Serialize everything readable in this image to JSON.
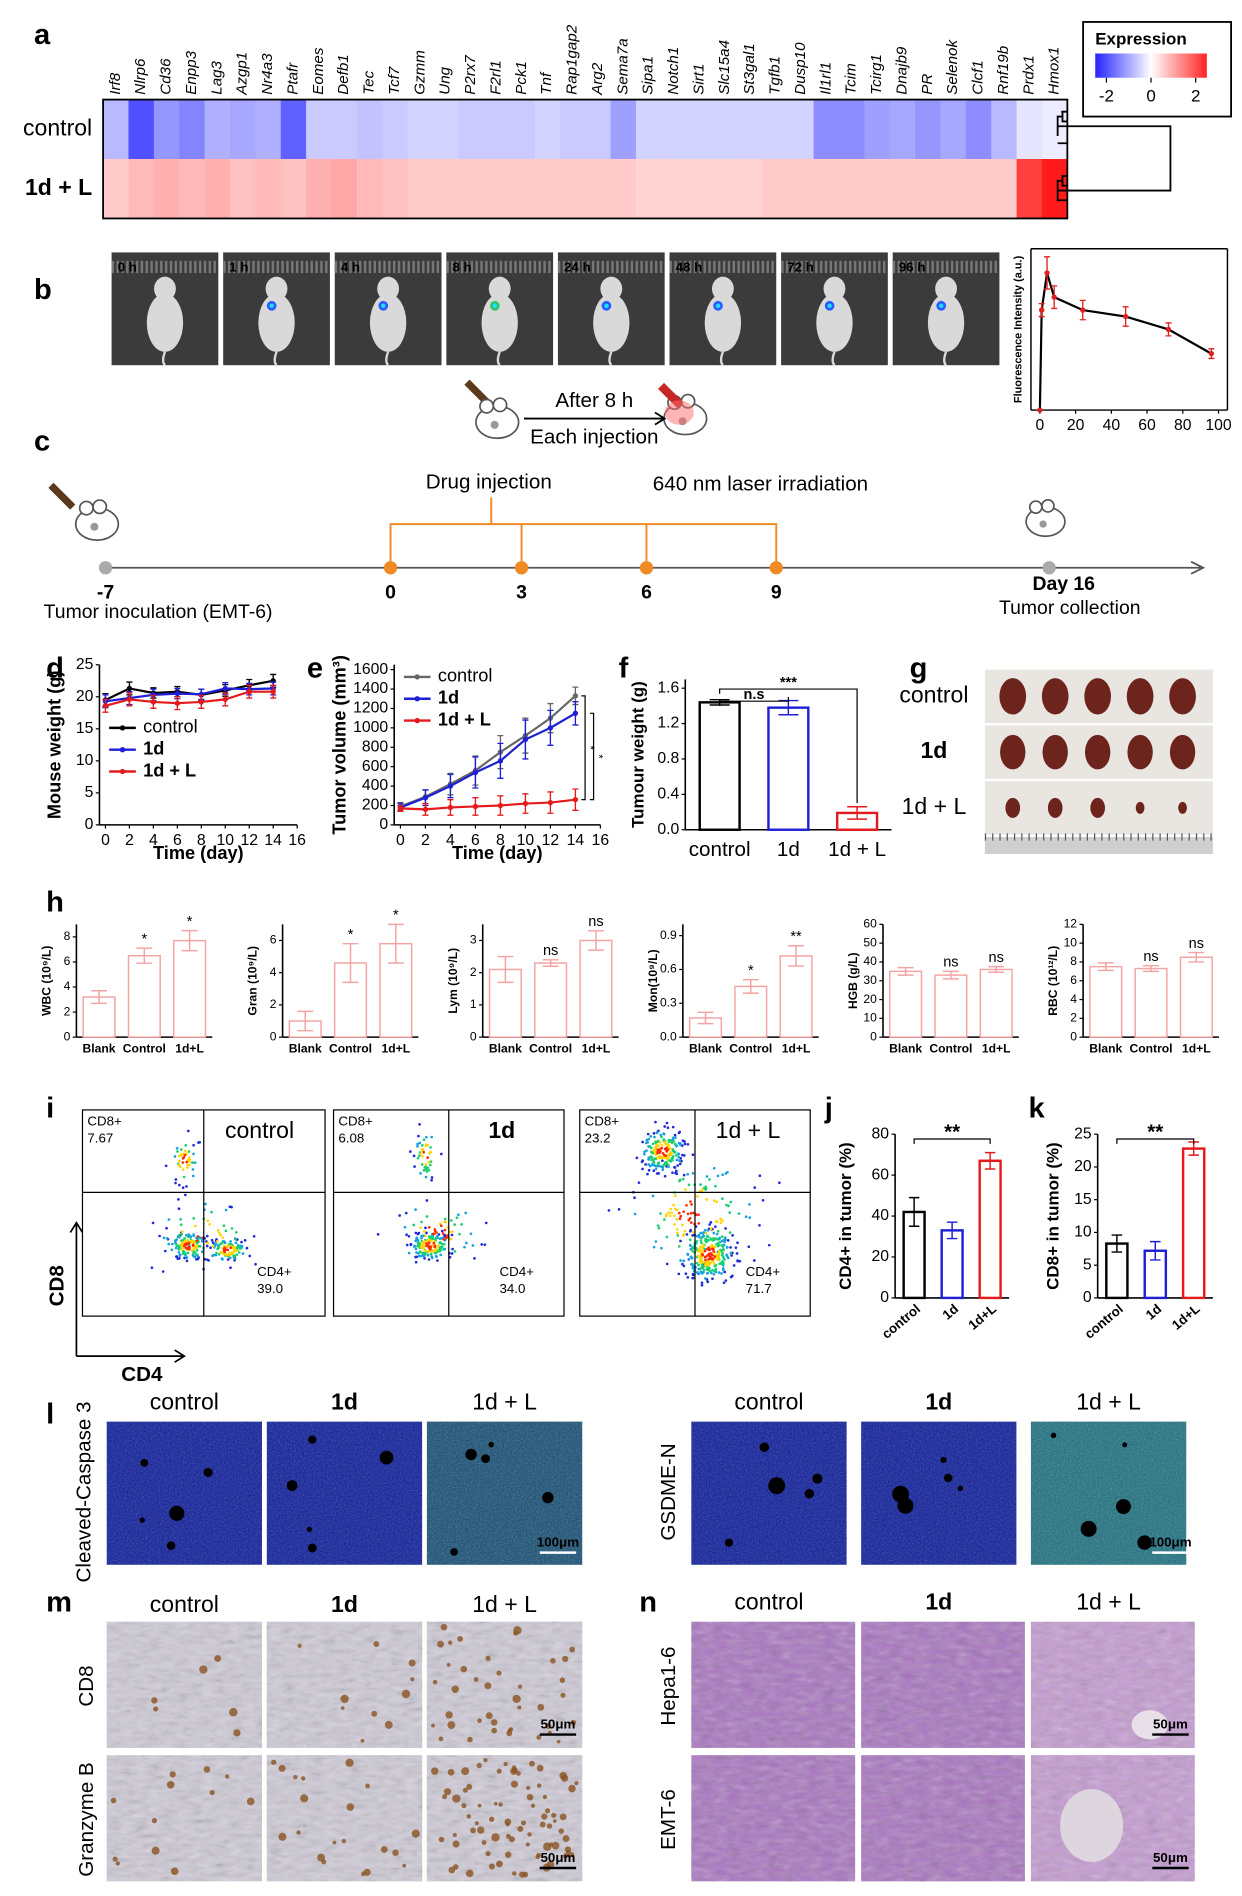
{
  "panel_labels": [
    "a",
    "b",
    "c",
    "d",
    "e",
    "f",
    "g",
    "h",
    "i",
    "j",
    "k",
    "l",
    "m",
    "n"
  ],
  "chart_data": [
    {
      "type": "heatmap",
      "columns": [
        "Irf8",
        "Nlrp6",
        "Cd36",
        "Enpp3",
        "Lag3",
        "Azgp1",
        "Nr4a3",
        "Ptafr",
        "Eomes",
        "Defb1",
        "Tec",
        "Tcf7",
        "Gzmm",
        "Ung",
        "P2rx7",
        "F2rl1",
        "Pck1",
        "Tnf",
        "Rap1gap2",
        "Arg2",
        "Sema7a",
        "Sipa1",
        "Notch1",
        "Sirt1",
        "Slc15a4",
        "St3gal1",
        "Tgfb1",
        "Dusp10",
        "Il1rl1",
        "Tcim",
        "Tcirg1",
        "Dnajb9",
        "PR",
        "Selenok",
        "Clcf1",
        "Rnf19b",
        "Prdx1",
        "Hmox1"
      ],
      "rows": [
        "control",
        "1d + L"
      ],
      "values": [
        [
          -0.8,
          -2.0,
          -1.2,
          -1.4,
          -0.9,
          -1.0,
          -0.9,
          -1.8,
          -0.6,
          -0.6,
          -0.7,
          -0.6,
          -0.5,
          -0.5,
          -0.6,
          -0.6,
          -0.6,
          -0.5,
          -0.6,
          -0.6,
          -1.1,
          -0.5,
          -0.5,
          -0.5,
          -0.5,
          -0.5,
          -0.5,
          -0.5,
          -1.3,
          -1.3,
          -1.1,
          -1.0,
          -1.2,
          -1.0,
          -1.3,
          -0.8,
          -0.3,
          -0.2
        ],
        [
          0.6,
          0.8,
          0.9,
          0.8,
          0.9,
          0.7,
          0.8,
          0.7,
          0.9,
          1.0,
          0.8,
          0.7,
          0.6,
          0.6,
          0.6,
          0.6,
          0.6,
          0.6,
          0.6,
          0.6,
          0.6,
          0.5,
          0.5,
          0.5,
          0.5,
          0.5,
          0.6,
          0.6,
          0.6,
          0.6,
          0.6,
          0.6,
          0.6,
          0.6,
          0.6,
          0.6,
          2.2,
          2.6
        ]
      ],
      "legend_title": "Expression",
      "colorbar_lim": [
        -2.5,
        2.5
      ],
      "colorbar_ticks": [
        -2,
        0,
        2
      ],
      "colors": [
        "#2424ff",
        "#ffffff",
        "#ff2424"
      ]
    },
    {
      "type": "line",
      "ylabel": "Fluorescence Intensity (a.u.)",
      "x": [
        0,
        1,
        4,
        8,
        24,
        48,
        72,
        96
      ],
      "series": [
        {
          "color": "#000000",
          "values": [
            0,
            0.62,
            0.85,
            0.7,
            0.62,
            0.58,
            0.5,
            0.35
          ],
          "errors": [
            0,
            0.04,
            0.1,
            0.07,
            0.06,
            0.06,
            0.04,
            0.03
          ]
        }
      ],
      "xlim": [
        -5,
        105
      ],
      "xticks": [
        0,
        20,
        40,
        60,
        80,
        100
      ],
      "ylim": [
        0,
        1
      ],
      "frame": true,
      "error_color": "#e02020"
    },
    {
      "type": "line",
      "xlabel": "Time (day)",
      "ylabel": "Mouse weight (g)",
      "x": [
        0,
        2,
        4,
        6,
        8,
        10,
        12,
        14
      ],
      "series": [
        {
          "name": "control",
          "color": "#000000",
          "values": [
            19.5,
            21.3,
            20.6,
            20.8,
            20.3,
            21,
            21.8,
            22.5
          ],
          "errors": [
            1,
            1,
            0.8,
            0.8,
            0.9,
            0.9,
            0.9,
            1
          ]
        },
        {
          "name": "1d",
          "color": "#1f1fd6",
          "values": [
            19.3,
            19.8,
            20.3,
            20.5,
            20.4,
            21.3,
            21.2,
            21.3
          ],
          "errors": [
            1,
            1,
            0.9,
            0.8,
            0.8,
            0.9,
            0.9,
            1
          ]
        },
        {
          "name": "1d + L",
          "color": "#e41a1c",
          "values": [
            18.6,
            19.6,
            19.2,
            19,
            19.2,
            19.6,
            20.8,
            20.8
          ],
          "errors": [
            1,
            1,
            1,
            1,
            1,
            1,
            1,
            1
          ]
        }
      ],
      "xlim": [
        -0.5,
        16
      ],
      "xticks": [
        0,
        2,
        4,
        6,
        8,
        10,
        12,
        14,
        16
      ],
      "ylim": [
        0,
        25
      ],
      "yticks": [
        0,
        5,
        10,
        15,
        20,
        25
      ],
      "legend": "center left"
    },
    {
      "type": "line",
      "xlabel": "Time (day)",
      "ylabel": "Tumor volume (mm³)",
      "x": [
        0,
        2,
        4,
        6,
        8,
        10,
        12,
        14
      ],
      "series": [
        {
          "name": "control",
          "color": "#666666",
          "values": [
            190,
            290,
            420,
            560,
            750,
            920,
            1100,
            1330
          ],
          "errors": [
            40,
            70,
            110,
            150,
            170,
            180,
            150,
            90
          ]
        },
        {
          "name": "1d",
          "color": "#1f1fd6",
          "values": [
            180,
            280,
            400,
            540,
            660,
            880,
            1000,
            1150
          ],
          "errors": [
            40,
            80,
            120,
            160,
            180,
            200,
            180,
            120
          ]
        },
        {
          "name": "1d + L",
          "color": "#e41a1c",
          "values": [
            170,
            160,
            180,
            190,
            200,
            220,
            230,
            260
          ],
          "errors": [
            30,
            60,
            80,
            90,
            100,
            100,
            110,
            110
          ]
        }
      ],
      "xlim": [
        -0.5,
        16
      ],
      "xticks": [
        0,
        2,
        4,
        6,
        8,
        10,
        12,
        14,
        16
      ],
      "ylim": [
        0,
        1650
      ],
      "yticks": [
        0,
        200,
        400,
        600,
        800,
        1000,
        1200,
        1400,
        1600
      ],
      "legend": "upper left",
      "brackets": [
        "*",
        "*"
      ]
    },
    {
      "type": "bar",
      "ylabel": "Tumour weight (g)",
      "categories": [
        "control",
        "1d",
        "1d + L"
      ],
      "values": [
        1.44,
        1.38,
        0.19
      ],
      "errors": [
        0.03,
        0.08,
        0.07
      ],
      "colors": [
        "#000000",
        "#1f1fd6",
        "#e41a1c"
      ],
      "ylim": [
        0,
        1.7
      ],
      "yticks": [
        {
          "value": 0,
          "label": "0.0"
        },
        0.4,
        0.8,
        1.2,
        1.6
      ],
      "brackets": [
        "n.s",
        "***"
      ]
    },
    {
      "type": "bar",
      "ylabel": "WBC (10⁹/L)",
      "categories": [
        "Blank",
        "Control",
        "1d+L"
      ],
      "values": [
        3.2,
        6.5,
        7.7
      ],
      "errors": [
        0.5,
        0.6,
        0.8
      ],
      "color": "#f4a3a3",
      "ylim": [
        0,
        9
      ],
      "yticks": [
        0,
        2,
        4,
        6,
        8
      ],
      "annotations": [
        "*",
        "*"
      ]
    },
    {
      "type": "bar",
      "ylabel": "Gran (10⁹/L)",
      "categories": [
        "Blank",
        "Control",
        "1d+L"
      ],
      "values": [
        1.0,
        4.6,
        5.8
      ],
      "errors": [
        0.6,
        1.2,
        1.2
      ],
      "color": "#f4a3a3",
      "ylim": [
        0,
        7
      ],
      "yticks": [
        0,
        2,
        4,
        6
      ],
      "annotations": [
        "*",
        "*"
      ]
    },
    {
      "type": "bar",
      "ylabel": "Lym (10⁹/L)",
      "categories": [
        "Blank",
        "Control",
        "1d+L"
      ],
      "values": [
        2.1,
        2.3,
        3.0
      ],
      "errors": [
        0.4,
        0.1,
        0.3
      ],
      "color": "#f4a3a3",
      "ylim": [
        0,
        3.5
      ],
      "yticks": [
        0,
        1,
        2,
        3
      ],
      "annotations": [
        "ns",
        "ns"
      ]
    },
    {
      "type": "bar",
      "ylabel": "Mon(10⁹/L)",
      "categories": [
        "Blank",
        "Control",
        "1d+L"
      ],
      "values": [
        0.17,
        0.45,
        0.72
      ],
      "errors": [
        0.05,
        0.06,
        0.09
      ],
      "color": "#f4a3a3",
      "ylim": [
        0,
        1
      ],
      "yticks": [
        {
          "value": 0,
          "label": "0.0"
        },
        0.3,
        0.6,
        0.9
      ],
      "annotations": [
        "*",
        "**"
      ]
    },
    {
      "type": "bar",
      "ylabel": "HGB (g/L)",
      "categories": [
        "Blank",
        "Control",
        "1d+L"
      ],
      "values": [
        35,
        33,
        36
      ],
      "errors": [
        2,
        2,
        1.5
      ],
      "color": "#f4a3a3",
      "ylim": [
        0,
        60
      ],
      "yticks": [
        0,
        10,
        20,
        30,
        40,
        50,
        60
      ],
      "annotations": [
        "ns",
        "ns"
      ]
    },
    {
      "type": "bar",
      "ylabel": "RBC (10¹²/L)",
      "categories": [
        "Blank",
        "Control",
        "1d+L"
      ],
      "values": [
        7.5,
        7.3,
        8.5
      ],
      "errors": [
        0.4,
        0.3,
        0.5
      ],
      "color": "#f4a3a3",
      "ylim": [
        0,
        12
      ],
      "yticks": [
        0,
        2,
        4,
        6,
        8,
        10,
        12
      ],
      "annotations": [
        "ns",
        "ns"
      ]
    },
    {
      "type": "bar",
      "ylabel": "CD4+ in tumor (%)",
      "categories": [
        "control",
        "1d",
        "1d+L"
      ],
      "values": [
        42,
        33,
        67
      ],
      "errors": [
        7,
        4,
        4
      ],
      "colors": [
        "#000000",
        "#1f1fd6",
        "#e41a1c"
      ],
      "ylim": [
        0,
        80
      ],
      "yticks": [
        0,
        20,
        40,
        60,
        80
      ],
      "brackets": [
        "**"
      ],
      "rotate_labels": true
    },
    {
      "type": "bar",
      "ylabel": "CD8+ in tumor (%)",
      "categories": [
        "control",
        "1d",
        "1d+L"
      ],
      "values": [
        8.3,
        7.2,
        22.8
      ],
      "errors": [
        1.3,
        1.4,
        1.0
      ],
      "colors": [
        "#000000",
        "#1f1fd6",
        "#e41a1c"
      ],
      "ylim": [
        0,
        25
      ],
      "yticks": [
        0,
        5,
        10,
        15,
        20,
        25
      ],
      "brackets": [
        "**"
      ],
      "rotate_labels": true
    }
  ],
  "imaging_timepoints": [
    "0 h",
    "1 h",
    "4 h",
    "8 h",
    "24 h",
    "48 h",
    "72 h",
    "96 h"
  ],
  "schedule": {
    "after": "After 8 h",
    "each": "Each injection",
    "drug": "Drug injection",
    "laser": "640 nm laser irradiation",
    "days": [
      "-7",
      "0",
      "3",
      "6",
      "9"
    ],
    "end_day": "Day 16",
    "start_label": "Tumor inoculation (EMT-6)",
    "end_label": "Tumor collection"
  },
  "tumor_photos": {
    "groups": [
      "control",
      "1d",
      "1d + L"
    ]
  },
  "flow": {
    "x_label": "CD4",
    "y_label": "CD8",
    "plots": [
      {
        "title": "control",
        "cd8_gate": "CD8+",
        "cd8_percent": "7.67",
        "cd4_gate": "CD4+",
        "cd4_percent": "39.0"
      },
      {
        "title": "1d",
        "cd8_gate": "CD8+",
        "cd8_percent": "6.08",
        "cd4_gate": "CD4+",
        "cd4_percent": "34.0"
      },
      {
        "title": "1d + L",
        "cd8_gate": "CD8+",
        "cd8_percent": "23.2",
        "cd4_gate": "CD4+",
        "cd4_percent": "71.7"
      }
    ]
  },
  "staining": {
    "groups": [
      "control",
      "1d",
      "1d + L"
    ],
    "if_markers": [
      "Cleaved-Caspase 3",
      "GSDME-N"
    ],
    "ihc_markers": [
      "CD8",
      "Granzyme B"
    ],
    "he_models": [
      "Hepa1-6",
      "EMT-6"
    ],
    "if_scale": "100μm",
    "ihc_scale": "50μm"
  }
}
